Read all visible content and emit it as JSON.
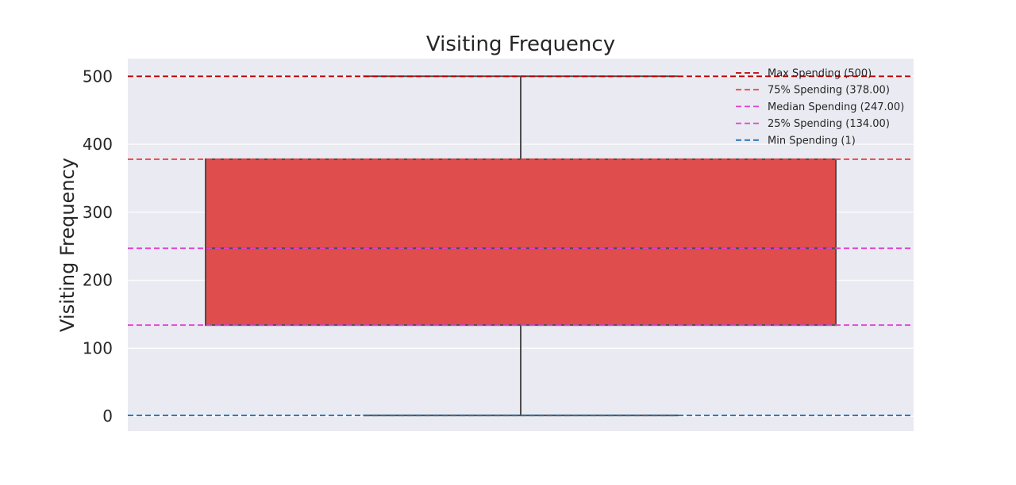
{
  "chart_data": {
    "type": "box",
    "title": "Visiting Frequency",
    "xlabel": "",
    "ylabel": "Visiting Frequency",
    "ylim": [
      -22,
      526
    ],
    "yticks": [
      0,
      100,
      200,
      300,
      400,
      500
    ],
    "grid": true,
    "legend_position": "top-right",
    "box": {
      "min": 1,
      "q1": 134,
      "median": 247,
      "q3": 378,
      "max": 500,
      "color": "#df4d4d",
      "edge_color": "#4d4d4d"
    },
    "reference_lines": [
      {
        "label": "Max Spending (500)",
        "value": 500,
        "color": "#c00000"
      },
      {
        "label": "75% Spending (378.00)",
        "value": 378,
        "color": "#e84545"
      },
      {
        "label": "Median Spending (247.00)",
        "value": 247,
        "color": "#e040d0"
      },
      {
        "label": "25% Spending (134.00)",
        "value": 134,
        "color": "#e040d0"
      },
      {
        "label": "Min Spending (1)",
        "value": 1,
        "color": "#1f6fb4"
      }
    ],
    "colors": {
      "plot_background": "#eaeaf2",
      "grid": "#ffffff"
    }
  }
}
